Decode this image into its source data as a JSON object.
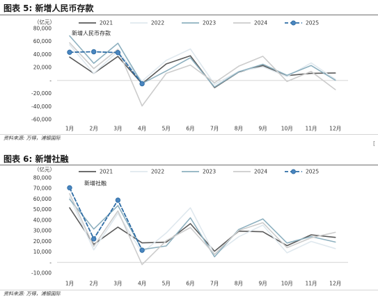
{
  "page": {
    "edge_mark": "["
  },
  "figures": [
    {
      "title": "图表 5: 新增人民币存款",
      "source": "资料来源: 万得，浦银国际"
    },
    {
      "title": "图表 6: 新增社融",
      "source": "资料来源: 万得，浦银国际"
    }
  ],
  "chart_data": [
    {
      "type": "line",
      "title": "新增人民币存款",
      "ylabel": "（亿元）",
      "categories": [
        "1月",
        "2月",
        "3月",
        "4月",
        "5月",
        "6月",
        "7月",
        "8月",
        "9月",
        "10月",
        "11月",
        "12月"
      ],
      "ylim": [
        -60000,
        80000
      ],
      "yticks": [
        80000,
        60000,
        40000,
        20000,
        0,
        -20000,
        -40000,
        -60000
      ],
      "ytick_labels": [
        "80,000",
        "60,000",
        "40,000",
        "20,000",
        "-",
        "-20,000",
        "-40,000",
        "-60,000"
      ],
      "grid": false,
      "legend": "top",
      "series": [
        {
          "name": "2021",
          "color": "#595959",
          "style": "solid",
          "values": [
            36000,
            11000,
            37000,
            -5000,
            25500,
            38000,
            -11000,
            13000,
            23000,
            7500,
            11000,
            11500
          ]
        },
        {
          "name": "2022",
          "color": "#dfe8ee",
          "style": "solid",
          "values": [
            55000,
            11000,
            45000,
            -1000,
            31000,
            48500,
            -6000,
            14000,
            21000,
            6000,
            27000,
            2000
          ]
        },
        {
          "name": "2023",
          "color": "#8db0bf",
          "style": "solid",
          "values": [
            68700,
            26500,
            57300,
            -4600,
            14600,
            35000,
            -10000,
            13300,
            25000,
            8000,
            23000,
            500
          ]
        },
        {
          "name": "2024",
          "color": "#cccccc",
          "style": "solid",
          "values": [
            58000,
            18300,
            48000,
            -39200,
            11000,
            23800,
            -3500,
            22000,
            37200,
            -1500,
            14000,
            -14000
          ]
        },
        {
          "name": "2025",
          "color": "#2f6da5",
          "style": "dashed",
          "marker": "circle",
          "marker_color": "#4a86c0",
          "values": [
            43400,
            44200,
            42900,
            -5000,
            null,
            null,
            null,
            null,
            null,
            null,
            null,
            null
          ]
        }
      ]
    },
    {
      "type": "line",
      "title": "新增社融",
      "ylabel": "（亿元）",
      "categories": [
        "1月",
        "2月",
        "3月",
        "4月",
        "5月",
        "6月",
        "7月",
        "8月",
        "9月",
        "10月",
        "11月",
        "12月"
      ],
      "ylim": [
        -10000,
        80000
      ],
      "yticks": [
        80000,
        70000,
        60000,
        50000,
        40000,
        30000,
        20000,
        10000,
        0,
        -10000
      ],
      "ytick_labels": [
        "80,000",
        "70,000",
        "60,000",
        "50,000",
        "40,000",
        "30,000",
        "20,000",
        "10,000",
        "-",
        "-10,000"
      ],
      "grid": false,
      "legend": "top",
      "series": [
        {
          "name": "2021",
          "color": "#595959",
          "style": "solid",
          "values": [
            51700,
            17100,
            33400,
            18500,
            19200,
            36700,
            10600,
            29600,
            29000,
            15900,
            26100,
            23700
          ]
        },
        {
          "name": "2022",
          "color": "#dfe8ee",
          "style": "solid",
          "values": [
            61700,
            11900,
            46500,
            9100,
            27900,
            51700,
            7600,
            24300,
            35300,
            9100,
            19900,
            13100
          ]
        },
        {
          "name": "2023",
          "color": "#8db0bf",
          "style": "solid",
          "values": [
            59800,
            31600,
            53800,
            12200,
            15600,
            42200,
            5400,
            31200,
            41200,
            18400,
            24500,
            19300
          ]
        },
        {
          "name": "2024",
          "color": "#cccccc",
          "style": "solid",
          "values": [
            65000,
            15200,
            48700,
            -2000,
            20600,
            33000,
            7700,
            30300,
            37600,
            14000,
            23400,
            28500
          ]
        },
        {
          "name": "2025",
          "color": "#2f6da5",
          "style": "dashed",
          "marker": "circle",
          "marker_color": "#4a86c0",
          "values": [
            70600,
            22300,
            58900,
            11600,
            null,
            null,
            null,
            null,
            null,
            null,
            null,
            null
          ]
        }
      ]
    }
  ]
}
